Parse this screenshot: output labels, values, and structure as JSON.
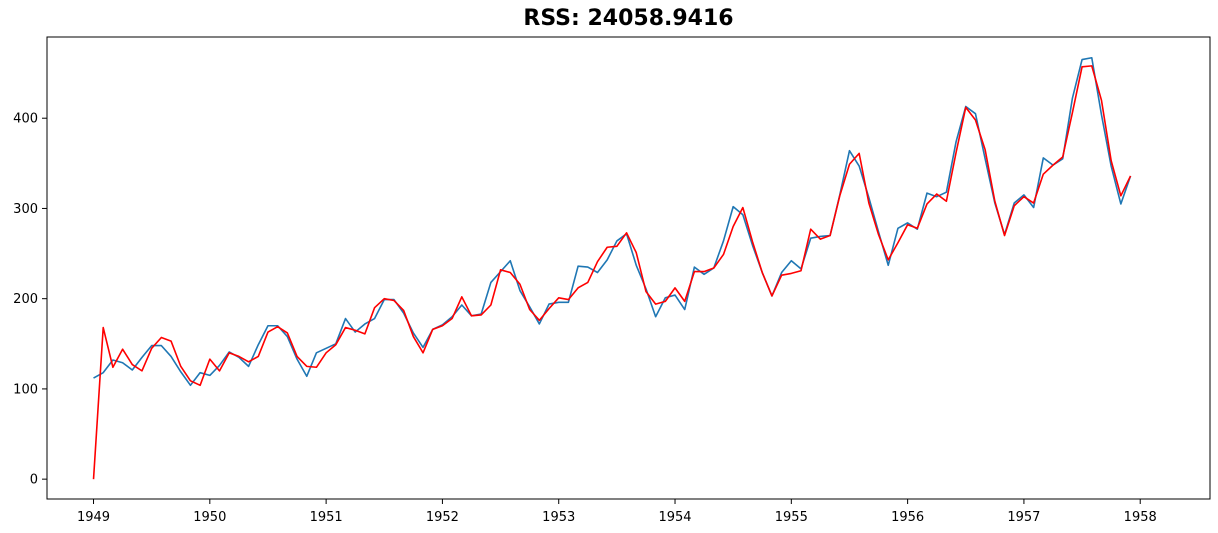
{
  "chart_data": {
    "type": "line",
    "title": "RSS: 24058.9416",
    "xlabel": "",
    "ylabel": "",
    "x_start": "1949-01",
    "x_frequency": "monthly",
    "xlim": [
      1948.6,
      1958.6
    ],
    "ylim": [
      -22,
      490
    ],
    "x_ticks": [
      1949,
      1950,
      1951,
      1952,
      1953,
      1954,
      1955,
      1956,
      1957,
      1958
    ],
    "x_tick_labels": [
      "1949",
      "1950",
      "1951",
      "1952",
      "1953",
      "1954",
      "1955",
      "1956",
      "1957",
      "1958"
    ],
    "y_ticks": [
      0,
      100,
      200,
      300,
      400
    ],
    "y_tick_labels": [
      "0",
      "100",
      "200",
      "300",
      "400"
    ],
    "grid": false,
    "series": [
      {
        "color": "#1f77b4",
        "values": [
          112,
          118,
          132,
          129,
          121,
          135,
          148,
          148,
          136,
          119,
          104,
          118,
          115,
          126,
          141,
          135,
          125,
          149,
          170,
          170,
          158,
          133,
          114,
          140,
          145,
          150,
          178,
          163,
          172,
          178,
          199,
          199,
          184,
          162,
          146,
          166,
          171,
          180,
          193,
          181,
          183,
          218,
          230,
          242,
          209,
          191,
          172,
          194,
          196,
          196,
          236,
          235,
          229,
          243,
          264,
          272,
          237,
          211,
          180,
          201,
          204,
          188,
          235,
          227,
          234,
          264,
          302,
          293,
          259,
          229,
          203,
          229,
          242,
          233,
          267,
          269,
          270,
          315,
          364,
          347,
          312,
          274,
          237,
          278,
          284,
          277,
          317,
          313,
          318,
          374,
          413,
          405,
          355,
          306,
          271,
          306,
          315,
          301,
          356,
          348,
          355,
          422,
          465,
          467,
          404,
          347,
          305,
          336
        ]
      },
      {
        "color": "#ff0000",
        "values": [
          0,
          168,
          124,
          144,
          127,
          120,
          145,
          157,
          153,
          125,
          109,
          104,
          133,
          120,
          140,
          136,
          130,
          136,
          163,
          169,
          162,
          136,
          125,
          124,
          140,
          149,
          168,
          165,
          161,
          190,
          200,
          198,
          187,
          158,
          140,
          166,
          170,
          178,
          202,
          181,
          182,
          193,
          232,
          229,
          216,
          188,
          176,
          189,
          201,
          199,
          212,
          218,
          241,
          257,
          258,
          273,
          251,
          208,
          194,
          197,
          212,
          197,
          230,
          230,
          234,
          249,
          280,
          301,
          263,
          229,
          203,
          226,
          228,
          231,
          277,
          266,
          270,
          314,
          349,
          361,
          306,
          271,
          243,
          262,
          282,
          278,
          305,
          316,
          308,
          362,
          412,
          398,
          365,
          308,
          270,
          303,
          313,
          306,
          338,
          348,
          357,
          406,
          457,
          458,
          420,
          353,
          314,
          336
        ]
      }
    ]
  }
}
